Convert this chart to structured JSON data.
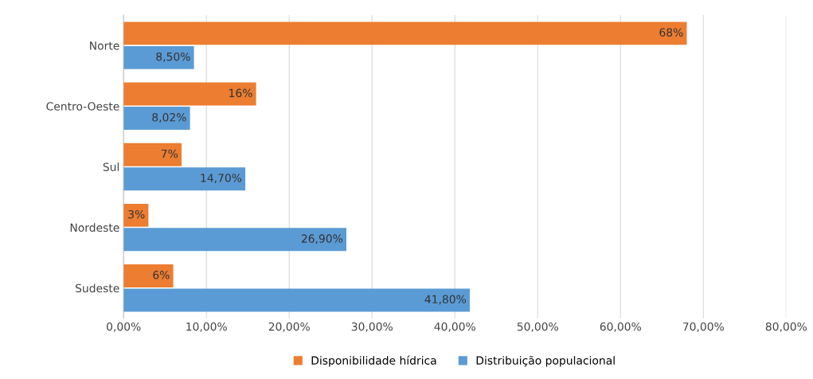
{
  "chart_data": {
    "type": "bar",
    "orientation": "horizontal",
    "categories": [
      "Norte",
      "Centro-Oeste",
      "Sul",
      "Nordeste",
      "Sudeste"
    ],
    "series": [
      {
        "name": "Disponibilidade hídrica",
        "color": "#ed7d31",
        "values": [
          68,
          16,
          7,
          3,
          6
        ],
        "value_labels": [
          "68%",
          "16%",
          "7%",
          "3%",
          "6%"
        ]
      },
      {
        "name": "Distribuição populacional",
        "color": "#5b9bd5",
        "values": [
          8.5,
          8.02,
          14.7,
          26.9,
          41.8
        ],
        "value_labels": [
          "8,50%",
          "8,02%",
          "14,70%",
          "26,90%",
          "41,80%"
        ]
      }
    ],
    "xlim": [
      0,
      80
    ],
    "xticks": [
      {
        "value": 0,
        "label": "0,00%"
      },
      {
        "value": 10,
        "label": "10,00%"
      },
      {
        "value": 20,
        "label": "20,00%"
      },
      {
        "value": 30,
        "label": "30,00%"
      },
      {
        "value": 40,
        "label": "40,00%"
      },
      {
        "value": 50,
        "label": "50,00%"
      },
      {
        "value": 60,
        "label": "60,00%"
      },
      {
        "value": 70,
        "label": "70,00%"
      },
      {
        "value": 80,
        "label": "80,00%"
      }
    ],
    "grid": "x",
    "legend": "bottom"
  }
}
